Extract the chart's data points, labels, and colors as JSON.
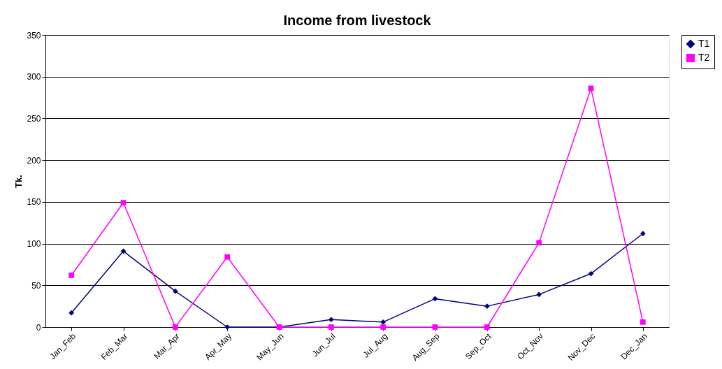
{
  "chart_data": {
    "type": "line",
    "title": "Income from livestock",
    "ylabel": "Tk.",
    "categories": [
      "Jan_Feb",
      "Feb_Mar",
      "Mar_Apr",
      "Apr_May",
      "May_Jun",
      "Jun_Jul",
      "Jul_Aug",
      "Aug_Sep",
      "Sep_Oct",
      "Oct_Nov",
      "Nov_Dec",
      "Dec_Jan"
    ],
    "series": [
      {
        "name": "T1",
        "color": "#000080",
        "marker": "diamond",
        "values": [
          17,
          91,
          43,
          0,
          0,
          9,
          6,
          34,
          25,
          39,
          64,
          112
        ]
      },
      {
        "name": "T2",
        "color": "#ff00ff",
        "marker": "square",
        "values": [
          62,
          149,
          0,
          84,
          0,
          0,
          0,
          0,
          0,
          101,
          286,
          6
        ]
      }
    ],
    "ylim": [
      0,
      350
    ],
    "yticks": [
      0,
      50,
      100,
      150,
      200,
      250,
      300,
      350
    ],
    "grid": "y",
    "legend": "right"
  }
}
